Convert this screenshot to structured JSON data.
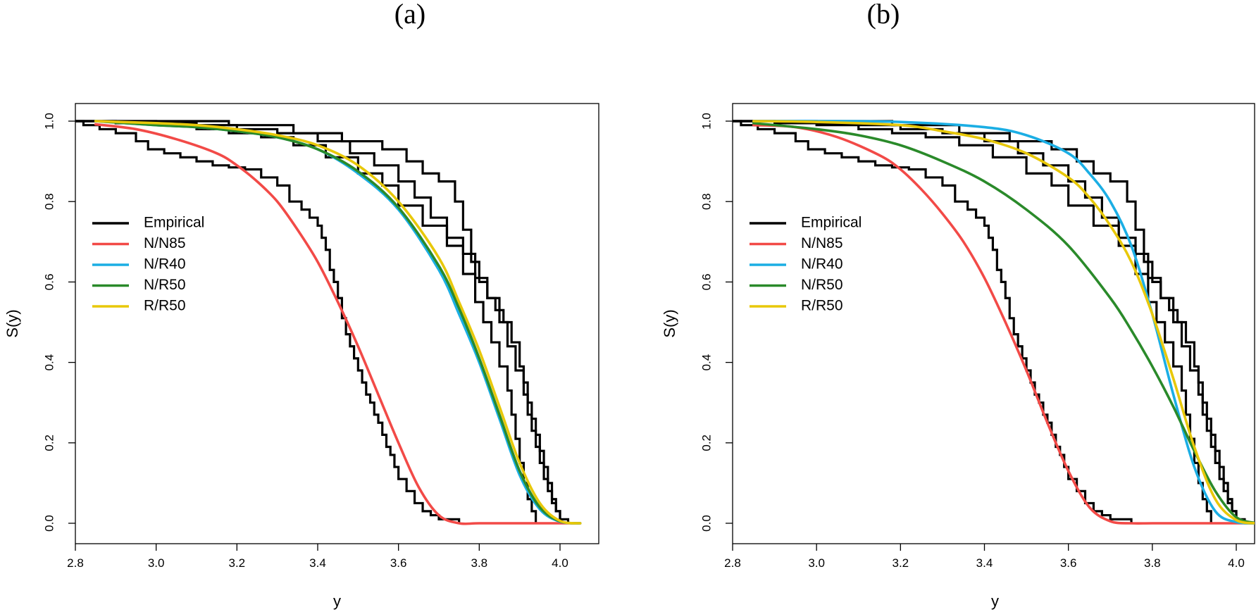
{
  "chart_data": [
    {
      "type": "line",
      "title": "(a)",
      "xlabel": "y",
      "ylabel": "S(y)",
      "xlim": [
        2.8,
        4.05
      ],
      "ylim": [
        0.0,
        1.0
      ],
      "xticks": [
        "2.8",
        "3.0",
        "3.2",
        "3.4",
        "3.6",
        "3.8",
        "4.0"
      ],
      "yticks": [
        "0.0",
        "0.2",
        "0.4",
        "0.6",
        "0.8",
        "1.0"
      ],
      "grid": false,
      "legend_position": "left",
      "legend": [
        {
          "name": "Empirical",
          "color": "#000000"
        },
        {
          "name": "N/N85",
          "color": "#F24A47"
        },
        {
          "name": "N/R40",
          "color": "#1BAEE4"
        },
        {
          "name": "N/R50",
          "color": "#2A8A2A"
        },
        {
          "name": "R/R50",
          "color": "#E8C80A"
        }
      ],
      "empirical": [
        {
          "x": [
            2.8,
            2.82,
            2.86,
            2.9,
            2.95,
            2.98,
            3.02,
            3.06,
            3.1,
            3.14,
            3.18,
            3.22,
            3.26,
            3.3,
            3.33,
            3.36,
            3.38,
            3.4,
            3.41,
            3.42,
            3.43,
            3.44,
            3.45,
            3.46,
            3.47,
            3.48,
            3.49,
            3.5,
            3.51,
            3.52,
            3.53,
            3.54,
            3.55,
            3.56,
            3.57,
            3.58,
            3.59,
            3.6,
            3.62,
            3.64,
            3.66,
            3.68,
            3.7,
            3.75
          ],
          "y": [
            1.0,
            0.99,
            0.98,
            0.97,
            0.95,
            0.93,
            0.92,
            0.91,
            0.9,
            0.89,
            0.885,
            0.88,
            0.86,
            0.84,
            0.8,
            0.78,
            0.76,
            0.74,
            0.71,
            0.68,
            0.63,
            0.6,
            0.56,
            0.51,
            0.47,
            0.44,
            0.41,
            0.38,
            0.35,
            0.32,
            0.3,
            0.27,
            0.25,
            0.22,
            0.19,
            0.17,
            0.14,
            0.11,
            0.08,
            0.05,
            0.03,
            0.02,
            0.01,
            0.0
          ]
        },
        {
          "x": [
            2.8,
            2.9,
            3.0,
            3.1,
            3.18,
            3.26,
            3.34,
            3.42,
            3.5,
            3.56,
            3.6,
            3.66,
            3.72,
            3.76,
            3.79,
            3.81,
            3.83,
            3.85,
            3.87,
            3.88,
            3.89,
            3.9,
            3.91,
            3.92,
            3.93,
            3.94
          ],
          "y": [
            1.0,
            0.995,
            0.99,
            0.98,
            0.97,
            0.96,
            0.94,
            0.91,
            0.87,
            0.84,
            0.79,
            0.74,
            0.69,
            0.62,
            0.55,
            0.5,
            0.45,
            0.39,
            0.33,
            0.27,
            0.21,
            0.15,
            0.1,
            0.06,
            0.03,
            0.0
          ]
        },
        {
          "x": [
            2.8,
            3.0,
            3.1,
            3.2,
            3.3,
            3.4,
            3.48,
            3.54,
            3.6,
            3.64,
            3.68,
            3.72,
            3.76,
            3.79,
            3.82,
            3.85,
            3.87,
            3.89,
            3.91,
            3.92,
            3.93,
            3.94,
            3.95,
            3.96,
            3.97,
            3.98,
            3.99,
            4.0,
            4.02
          ],
          "y": [
            1.0,
            0.995,
            0.99,
            0.98,
            0.97,
            0.95,
            0.92,
            0.89,
            0.85,
            0.81,
            0.76,
            0.71,
            0.67,
            0.61,
            0.56,
            0.5,
            0.44,
            0.38,
            0.32,
            0.27,
            0.23,
            0.19,
            0.15,
            0.11,
            0.08,
            0.05,
            0.03,
            0.01,
            0.0
          ]
        },
        {
          "x": [
            2.8,
            3.18,
            3.34,
            3.46,
            3.56,
            3.62,
            3.66,
            3.7,
            3.74,
            3.76,
            3.78,
            3.8,
            3.82,
            3.84,
            3.86,
            3.88,
            3.9,
            3.91,
            3.92,
            3.93,
            3.94,
            3.95,
            3.96,
            3.97,
            3.98,
            3.99,
            4.0
          ],
          "y": [
            1.0,
            0.99,
            0.97,
            0.95,
            0.93,
            0.9,
            0.87,
            0.85,
            0.8,
            0.73,
            0.65,
            0.6,
            0.56,
            0.53,
            0.5,
            0.45,
            0.39,
            0.35,
            0.3,
            0.26,
            0.22,
            0.18,
            0.14,
            0.1,
            0.06,
            0.03,
            0.0
          ]
        }
      ],
      "series": [
        {
          "name": "N/N85",
          "color": "#F24A47",
          "x": [
            2.85,
            2.95,
            3.05,
            3.15,
            3.2,
            3.25,
            3.3,
            3.35,
            3.4,
            3.45,
            3.5,
            3.55,
            3.6,
            3.65,
            3.7,
            3.75,
            3.8,
            3.9,
            4.0,
            4.05
          ],
          "y": [
            0.992,
            0.98,
            0.955,
            0.92,
            0.89,
            0.85,
            0.8,
            0.73,
            0.65,
            0.55,
            0.44,
            0.32,
            0.2,
            0.09,
            0.02,
            0.0,
            0.0,
            0.0,
            0.0,
            0.0
          ]
        },
        {
          "name": "N/R40",
          "color": "#1BAEE4",
          "x": [
            2.85,
            3.0,
            3.1,
            3.2,
            3.3,
            3.4,
            3.5,
            3.6,
            3.7,
            3.75,
            3.8,
            3.85,
            3.9,
            3.95,
            4.0,
            4.05
          ],
          "y": [
            1.0,
            0.99,
            0.985,
            0.975,
            0.96,
            0.93,
            0.87,
            0.78,
            0.63,
            0.52,
            0.4,
            0.26,
            0.12,
            0.035,
            0.004,
            0.0
          ]
        },
        {
          "name": "N/R50",
          "color": "#2A8A2A",
          "x": [
            2.85,
            3.0,
            3.1,
            3.2,
            3.3,
            3.4,
            3.5,
            3.6,
            3.7,
            3.75,
            3.8,
            3.85,
            3.9,
            3.95,
            4.0,
            4.05
          ],
          "y": [
            1.0,
            0.99,
            0.985,
            0.975,
            0.96,
            0.93,
            0.875,
            0.785,
            0.64,
            0.535,
            0.41,
            0.27,
            0.13,
            0.04,
            0.005,
            0.0
          ]
        },
        {
          "name": "R/R50",
          "color": "#E8C80A",
          "x": [
            2.85,
            3.0,
            3.1,
            3.2,
            3.3,
            3.4,
            3.5,
            3.6,
            3.7,
            3.75,
            3.8,
            3.85,
            3.9,
            3.95,
            4.0,
            4.05
          ],
          "y": [
            1.0,
            0.995,
            0.99,
            0.98,
            0.965,
            0.94,
            0.89,
            0.8,
            0.66,
            0.55,
            0.43,
            0.29,
            0.15,
            0.05,
            0.006,
            0.0
          ]
        }
      ]
    },
    {
      "type": "line",
      "title": "(b)",
      "xlabel": "y",
      "ylabel": "S(y)",
      "xlim": [
        2.8,
        4.05
      ],
      "ylim": [
        0.0,
        1.0
      ],
      "xticks": [
        "2.8",
        "3.0",
        "3.2",
        "3.4",
        "3.6",
        "3.8",
        "4.0"
      ],
      "yticks": [
        "0.0",
        "0.2",
        "0.4",
        "0.6",
        "0.8",
        "1.0"
      ],
      "grid": false,
      "legend_position": "left",
      "legend": [
        {
          "name": "Empirical",
          "color": "#000000"
        },
        {
          "name": "N/N85",
          "color": "#F24A47"
        },
        {
          "name": "N/R40",
          "color": "#1BAEE4"
        },
        {
          "name": "N/R50",
          "color": "#2A8A2A"
        },
        {
          "name": "R/R50",
          "color": "#E8C80A"
        }
      ],
      "empirical": [
        {
          "x": [
            2.8,
            2.82,
            2.86,
            2.9,
            2.95,
            2.98,
            3.02,
            3.06,
            3.1,
            3.14,
            3.18,
            3.22,
            3.26,
            3.3,
            3.33,
            3.36,
            3.38,
            3.4,
            3.41,
            3.42,
            3.43,
            3.44,
            3.45,
            3.46,
            3.47,
            3.48,
            3.49,
            3.5,
            3.51,
            3.52,
            3.53,
            3.54,
            3.55,
            3.56,
            3.57,
            3.58,
            3.59,
            3.6,
            3.62,
            3.64,
            3.66,
            3.68,
            3.7,
            3.75
          ],
          "y": [
            1.0,
            0.99,
            0.98,
            0.97,
            0.95,
            0.93,
            0.92,
            0.91,
            0.9,
            0.89,
            0.885,
            0.88,
            0.86,
            0.84,
            0.8,
            0.78,
            0.76,
            0.74,
            0.71,
            0.68,
            0.63,
            0.6,
            0.56,
            0.51,
            0.47,
            0.44,
            0.41,
            0.38,
            0.35,
            0.32,
            0.3,
            0.27,
            0.25,
            0.22,
            0.19,
            0.17,
            0.14,
            0.11,
            0.08,
            0.05,
            0.03,
            0.02,
            0.01,
            0.0
          ]
        },
        {
          "x": [
            2.8,
            2.9,
            3.0,
            3.1,
            3.18,
            3.26,
            3.34,
            3.42,
            3.5,
            3.56,
            3.6,
            3.66,
            3.72,
            3.76,
            3.79,
            3.81,
            3.83,
            3.85,
            3.87,
            3.88,
            3.89,
            3.9,
            3.91,
            3.92,
            3.93,
            3.94
          ],
          "y": [
            1.0,
            0.995,
            0.99,
            0.98,
            0.97,
            0.96,
            0.94,
            0.91,
            0.87,
            0.84,
            0.79,
            0.74,
            0.69,
            0.62,
            0.55,
            0.5,
            0.45,
            0.39,
            0.33,
            0.27,
            0.21,
            0.15,
            0.1,
            0.06,
            0.03,
            0.0
          ]
        },
        {
          "x": [
            2.8,
            3.0,
            3.1,
            3.2,
            3.3,
            3.4,
            3.48,
            3.54,
            3.6,
            3.64,
            3.68,
            3.72,
            3.76,
            3.79,
            3.82,
            3.85,
            3.87,
            3.89,
            3.91,
            3.92,
            3.93,
            3.94,
            3.95,
            3.96,
            3.97,
            3.98,
            3.99,
            4.0,
            4.02
          ],
          "y": [
            1.0,
            0.995,
            0.99,
            0.98,
            0.97,
            0.95,
            0.92,
            0.89,
            0.85,
            0.81,
            0.76,
            0.71,
            0.67,
            0.61,
            0.56,
            0.5,
            0.44,
            0.38,
            0.32,
            0.27,
            0.23,
            0.19,
            0.15,
            0.11,
            0.08,
            0.05,
            0.03,
            0.01,
            0.0
          ]
        },
        {
          "x": [
            2.8,
            3.18,
            3.34,
            3.46,
            3.56,
            3.62,
            3.66,
            3.7,
            3.74,
            3.76,
            3.78,
            3.8,
            3.82,
            3.84,
            3.86,
            3.88,
            3.9,
            3.91,
            3.92,
            3.93,
            3.94,
            3.95,
            3.96,
            3.97,
            3.98,
            3.99,
            4.0
          ],
          "y": [
            1.0,
            0.99,
            0.97,
            0.95,
            0.93,
            0.9,
            0.87,
            0.85,
            0.8,
            0.73,
            0.65,
            0.6,
            0.56,
            0.53,
            0.5,
            0.45,
            0.39,
            0.35,
            0.3,
            0.26,
            0.22,
            0.18,
            0.14,
            0.1,
            0.06,
            0.03,
            0.0
          ]
        }
      ],
      "series": [
        {
          "name": "N/N85",
          "color": "#F24A47",
          "x": [
            2.85,
            2.95,
            3.05,
            3.15,
            3.2,
            3.25,
            3.3,
            3.35,
            3.4,
            3.45,
            3.5,
            3.55,
            3.6,
            3.65,
            3.7,
            3.75,
            3.8,
            3.9,
            4.0,
            4.05
          ],
          "y": [
            0.99,
            0.985,
            0.96,
            0.915,
            0.88,
            0.83,
            0.77,
            0.7,
            0.61,
            0.5,
            0.38,
            0.25,
            0.13,
            0.04,
            0.005,
            0.0,
            0.0,
            0.0,
            0.0,
            0.0
          ]
        },
        {
          "name": "N/R40",
          "color": "#1BAEE4",
          "x": [
            2.85,
            3.0,
            3.2,
            3.4,
            3.5,
            3.6,
            3.65,
            3.7,
            3.75,
            3.8,
            3.85,
            3.9,
            3.95,
            4.0,
            4.05
          ],
          "y": [
            1.0,
            1.0,
            0.998,
            0.985,
            0.965,
            0.92,
            0.87,
            0.8,
            0.69,
            0.52,
            0.32,
            0.14,
            0.03,
            0.003,
            0.0
          ]
        },
        {
          "name": "N/R50",
          "color": "#2A8A2A",
          "x": [
            2.85,
            3.0,
            3.1,
            3.2,
            3.3,
            3.4,
            3.5,
            3.6,
            3.7,
            3.75,
            3.8,
            3.85,
            3.9,
            3.95,
            4.0,
            4.05
          ],
          "y": [
            0.995,
            0.98,
            0.965,
            0.94,
            0.9,
            0.85,
            0.78,
            0.69,
            0.56,
            0.48,
            0.39,
            0.29,
            0.18,
            0.08,
            0.015,
            0.0
          ]
        },
        {
          "name": "R/R50",
          "color": "#E8C80A",
          "x": [
            2.85,
            3.0,
            3.2,
            3.3,
            3.4,
            3.5,
            3.6,
            3.65,
            3.7,
            3.75,
            3.8,
            3.85,
            3.9,
            3.95,
            4.0,
            4.05
          ],
          "y": [
            1.0,
            0.998,
            0.99,
            0.975,
            0.955,
            0.92,
            0.86,
            0.81,
            0.74,
            0.65,
            0.52,
            0.36,
            0.19,
            0.06,
            0.008,
            0.0
          ]
        }
      ]
    }
  ]
}
